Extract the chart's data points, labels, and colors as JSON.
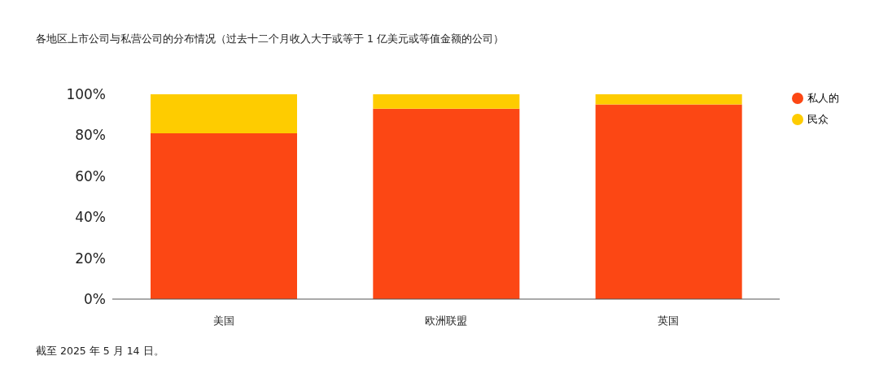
{
  "chart_data": {
    "type": "bar",
    "title": "各地区上市公司与私营公司的分布情况（过去十二个月收入大于或等于 1 亿美元或等值金额的公司）",
    "categories": [
      "美国",
      "欧洲联盟",
      "英国"
    ],
    "series": [
      {
        "name": "私人的",
        "color": "#fc4714",
        "values": [
          81,
          93,
          95
        ]
      },
      {
        "name": "民众",
        "color": "#fecc00",
        "values": [
          19,
          7,
          5
        ]
      }
    ],
    "stacked": true,
    "ylim": [
      0,
      100
    ],
    "yticks": [
      {
        "value": 0,
        "label": "0%"
      },
      {
        "value": 20,
        "label": "20%"
      },
      {
        "value": 40,
        "label": "40%"
      },
      {
        "value": 60,
        "label": "60%"
      },
      {
        "value": 80,
        "label": "80%"
      },
      {
        "value": 100,
        "label": "100%"
      }
    ],
    "grid": false,
    "legend": "top right",
    "annotations": [
      "截至 2025 年 5 月 14 日。"
    ]
  }
}
